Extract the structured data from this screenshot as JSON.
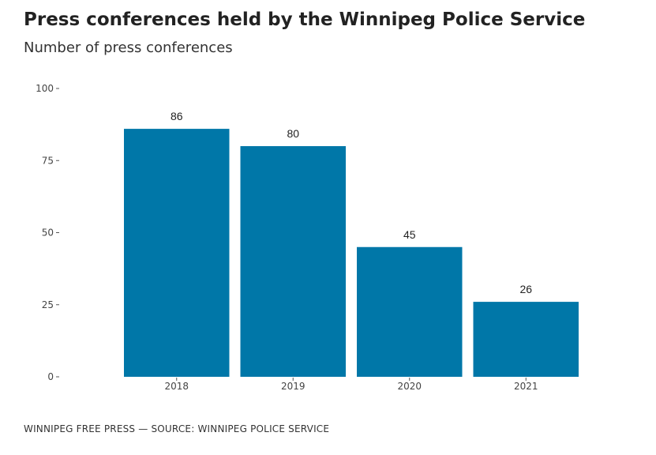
{
  "header": {
    "title": "Press conferences held by the Winnipeg Police Service",
    "subtitle": "Number of press conferences"
  },
  "footer": {
    "credit": "WINNIPEG FREE PRESS — SOURCE: WINNIPEG POLICE SERVICE"
  },
  "colors": {
    "bar": "#0077a8"
  },
  "chart_data": {
    "type": "bar",
    "title": "Press conferences held by the Winnipeg Police Service",
    "subtitle": "Number of press conferences",
    "categories": [
      "2018",
      "2019",
      "2020",
      "2021"
    ],
    "values": [
      86,
      80,
      45,
      26
    ],
    "xlabel": "",
    "ylabel": "Number of press conferences",
    "ylim": [
      0,
      100
    ],
    "yticks": [
      0,
      25,
      50,
      75,
      100
    ],
    "grid": false,
    "legend": "none"
  }
}
